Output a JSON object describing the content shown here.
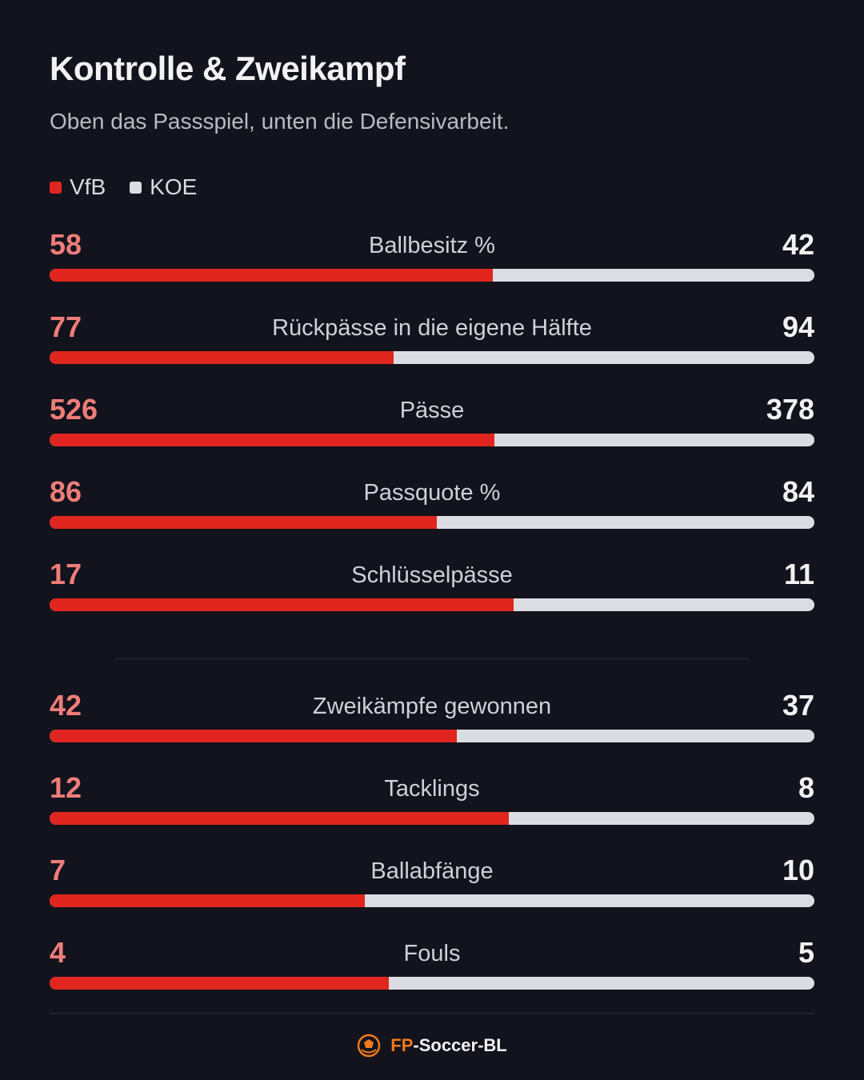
{
  "header": {
    "title": "Kontrolle & Zweikampf",
    "subtitle": "Oben das Passspiel, unten die Defensivarbeit."
  },
  "legend": [
    {
      "label": "VfB",
      "color": "#e0261f"
    },
    {
      "label": "KOE",
      "color": "#dcdce3"
    }
  ],
  "chart_data": {
    "type": "bar",
    "orientation": "horizontal-diverging-stacked",
    "series": [
      {
        "name": "VfB",
        "color": "#e0261f"
      },
      {
        "name": "KOE",
        "color": "#dcdce3"
      }
    ],
    "groups": [
      {
        "section": "Passspiel",
        "rows": [
          {
            "label": "Ballbesitz %",
            "left": "58",
            "right": "42",
            "share": 0.58
          },
          {
            "label": "Rückpässe in die eigene Hälfte",
            "left": "77",
            "right": "94",
            "share": 0.45
          },
          {
            "label": "Pässe",
            "left": "526",
            "right": "378",
            "share": 0.582
          },
          {
            "label": "Passquote %",
            "left": "86",
            "right": "84",
            "share": 0.506
          },
          {
            "label": "Schlüsselpässe",
            "left": "17",
            "right": "11",
            "share": 0.607
          }
        ]
      },
      {
        "section": "Defensivarbeit",
        "rows": [
          {
            "label": "Zweikämpfe gewonnen",
            "left": "42",
            "right": "37",
            "share": 0.532
          },
          {
            "label": "Tacklings",
            "left": "12",
            "right": "8",
            "share": 0.6
          },
          {
            "label": "Ballabfänge",
            "left": "7",
            "right": "10",
            "share": 0.412
          },
          {
            "label": "Fouls",
            "left": "4",
            "right": "5",
            "share": 0.444
          }
        ]
      }
    ]
  },
  "footer": {
    "brand_accent": "FP",
    "brand_rest": "-Soccer-BL",
    "logo_icon": "ball-logo-icon"
  }
}
